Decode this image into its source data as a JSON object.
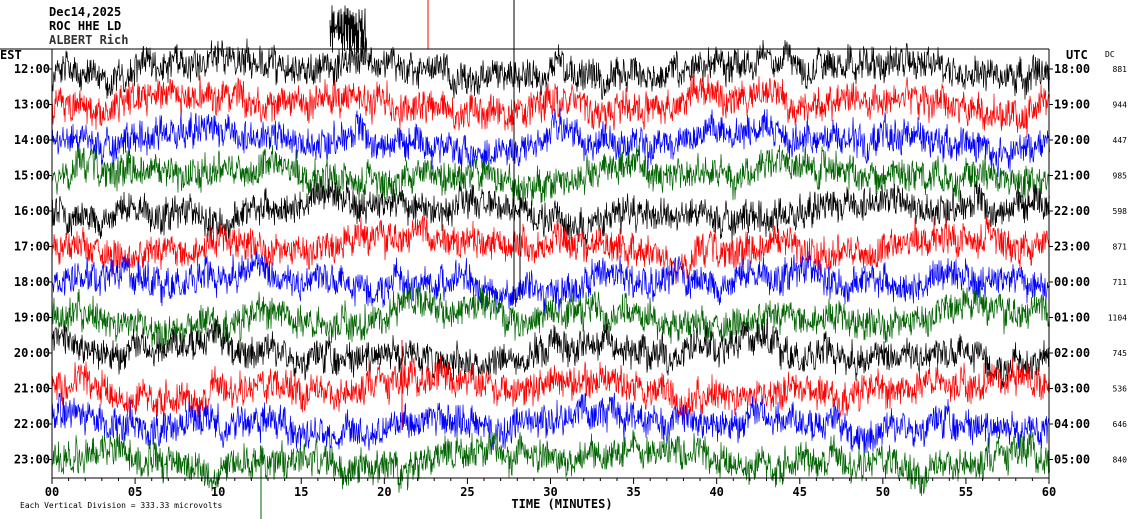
{
  "header": {
    "date": "Dec14,2025",
    "station": "ROC HHE LD",
    "network": "ALBERT Rich"
  },
  "chart_data": {
    "type": "line",
    "title": "Dec14,2025",
    "left_axis_label": "EST",
    "right_axis_label": "UTC",
    "dc_label": "DC",
    "xlabel": "TIME (MINUTES)",
    "x_ticks": [
      "00",
      "05",
      "10",
      "15",
      "20",
      "25",
      "30",
      "35",
      "40",
      "45",
      "50",
      "55",
      "60"
    ],
    "xlim": [
      0,
      60
    ],
    "rows": [
      {
        "est": "12:00",
        "utc": "18:00",
        "dc": "881",
        "color": "#000000"
      },
      {
        "est": "13:00",
        "utc": "19:00",
        "dc": "944",
        "color": "#ff0000"
      },
      {
        "est": "14:00",
        "utc": "20:00",
        "dc": "447",
        "color": "#0000ff"
      },
      {
        "est": "15:00",
        "utc": "21:00",
        "dc": "985",
        "color": "#006400"
      },
      {
        "est": "16:00",
        "utc": "22:00",
        "dc": "598",
        "color": "#000000"
      },
      {
        "est": "17:00",
        "utc": "23:00",
        "dc": "871",
        "color": "#ff0000"
      },
      {
        "est": "18:00",
        "utc": "00:00",
        "dc": "711",
        "color": "#0000ff"
      },
      {
        "est": "19:00",
        "utc": "01:00",
        "dc": "1104",
        "color": "#006400"
      },
      {
        "est": "20:00",
        "utc": "02:00",
        "dc": "745",
        "color": "#000000"
      },
      {
        "est": "21:00",
        "utc": "03:00",
        "dc": "536",
        "color": "#ff0000"
      },
      {
        "est": "22:00",
        "utc": "04:00",
        "dc": "646",
        "color": "#0000ff"
      },
      {
        "est": "23:00",
        "utc": "05:00",
        "dc": "840",
        "color": "#006400"
      }
    ],
    "scale_note": "Each Vertical Division = 333.33 microvolts",
    "grid": false
  }
}
